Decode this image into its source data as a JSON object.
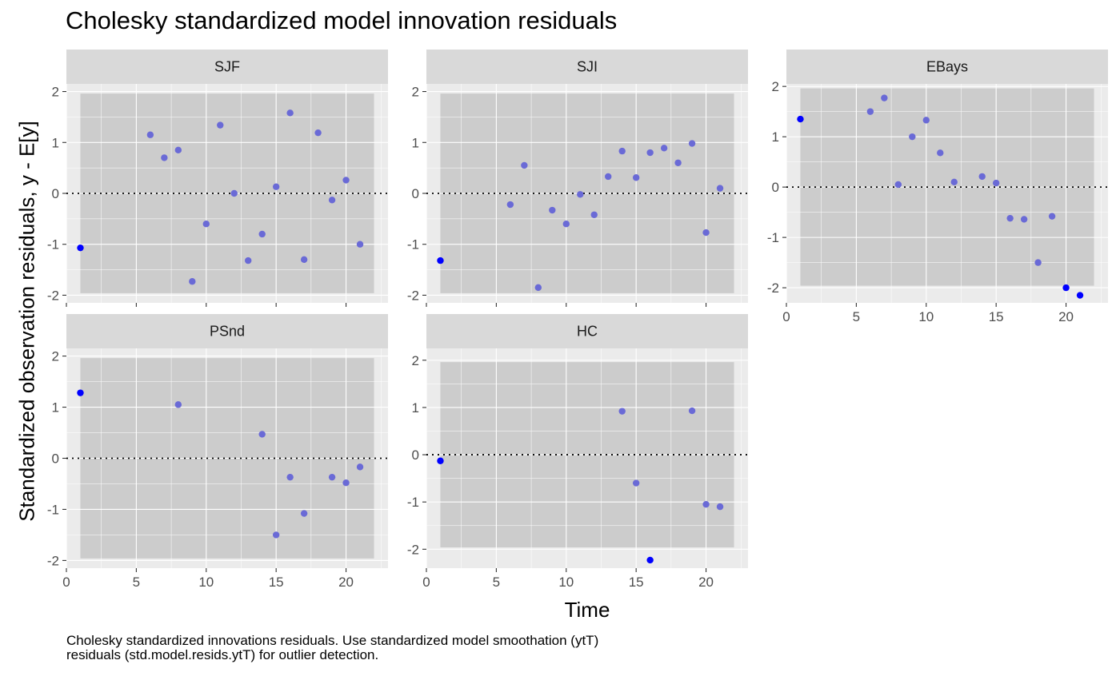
{
  "title": "Cholesky standardized model innovation residuals",
  "xlabel": "Time",
  "ylabel": "Standardized observation residuals, y - E[y]",
  "caption": "Cholesky standardized innovations residuals. Use standardized model smoothation (ytT) residuals (std.model.resids.ytT) for outlier detection.",
  "colors": {
    "point_normal": "#6a6ad6",
    "point_outlier": "#0000ff",
    "panel_bg": "#ebebeb",
    "ci_band": "#cccccc",
    "strip_bg": "#d9d9d9",
    "grid": "#ffffff",
    "zero_line": "#000000"
  },
  "chart_data": {
    "type": "scatter",
    "x_ticks": [
      0,
      5,
      10,
      15,
      20
    ],
    "xlim": [
      0,
      23
    ],
    "y_ticks": [
      -2,
      -1,
      0,
      1,
      2
    ],
    "ci_band": {
      "x": [
        1,
        22
      ],
      "y": [
        -1.96,
        1.96
      ]
    },
    "panels": [
      {
        "name": "SJF",
        "ylim": [
          -2.15,
          2.15
        ],
        "points": [
          [
            1,
            -1.07,
            1
          ],
          [
            6,
            1.15,
            0
          ],
          [
            7,
            0.7,
            0
          ],
          [
            8,
            0.85,
            0
          ],
          [
            9,
            -1.73,
            0
          ],
          [
            10,
            -0.6,
            0
          ],
          [
            11,
            1.34,
            0
          ],
          [
            12,
            0.0,
            0
          ],
          [
            13,
            -1.32,
            0
          ],
          [
            14,
            -0.8,
            0
          ],
          [
            15,
            0.13,
            0
          ],
          [
            16,
            1.58,
            0
          ],
          [
            17,
            -1.3,
            0
          ],
          [
            18,
            1.19,
            0
          ],
          [
            19,
            -0.13,
            0
          ],
          [
            20,
            0.26,
            0
          ],
          [
            21,
            -1.0,
            0
          ]
        ]
      },
      {
        "name": "SJI",
        "ylim": [
          -2.15,
          2.15
        ],
        "points": [
          [
            1,
            -1.32,
            1
          ],
          [
            6,
            -0.22,
            0
          ],
          [
            7,
            0.55,
            0
          ],
          [
            8,
            -1.85,
            0
          ],
          [
            9,
            -0.33,
            0
          ],
          [
            10,
            -0.6,
            0
          ],
          [
            11,
            -0.02,
            0
          ],
          [
            12,
            -0.42,
            0
          ],
          [
            13,
            0.33,
            0
          ],
          [
            14,
            0.83,
            0
          ],
          [
            15,
            0.31,
            0
          ],
          [
            16,
            0.8,
            0
          ],
          [
            17,
            0.89,
            0
          ],
          [
            18,
            0.6,
            0
          ],
          [
            19,
            0.98,
            0
          ],
          [
            20,
            -0.77,
            0
          ],
          [
            21,
            0.1,
            0
          ]
        ]
      },
      {
        "name": "EBays",
        "ylim": [
          -2.3,
          2.05
        ],
        "points": [
          [
            1,
            1.35,
            1
          ],
          [
            6,
            1.5,
            0
          ],
          [
            7,
            1.77,
            0
          ],
          [
            8,
            0.05,
            0
          ],
          [
            9,
            1.0,
            0
          ],
          [
            10,
            1.33,
            0
          ],
          [
            11,
            0.68,
            0
          ],
          [
            12,
            0.1,
            0
          ],
          [
            14,
            0.21,
            0
          ],
          [
            15,
            0.08,
            0
          ],
          [
            16,
            -0.62,
            0
          ],
          [
            17,
            -0.64,
            0
          ],
          [
            18,
            -1.5,
            0
          ],
          [
            19,
            -0.58,
            0
          ],
          [
            20,
            -2.0,
            1
          ],
          [
            21,
            -2.15,
            1
          ]
        ]
      },
      {
        "name": "PSnd",
        "ylim": [
          -2.15,
          2.15
        ],
        "points": [
          [
            1,
            1.28,
            1
          ],
          [
            8,
            1.05,
            0
          ],
          [
            14,
            0.47,
            0
          ],
          [
            15,
            -1.5,
            0
          ],
          [
            16,
            -0.37,
            0
          ],
          [
            17,
            -1.08,
            0
          ],
          [
            19,
            -0.37,
            0
          ],
          [
            20,
            -0.48,
            0
          ],
          [
            21,
            -0.17,
            0
          ]
        ]
      },
      {
        "name": "HC",
        "ylim": [
          -2.4,
          2.25
        ],
        "points": [
          [
            1,
            -0.13,
            1
          ],
          [
            14,
            0.92,
            0
          ],
          [
            15,
            -0.6,
            0
          ],
          [
            16,
            -2.23,
            1
          ],
          [
            19,
            0.93,
            0
          ],
          [
            20,
            -1.05,
            0
          ],
          [
            21,
            -1.1,
            0
          ]
        ]
      }
    ]
  }
}
